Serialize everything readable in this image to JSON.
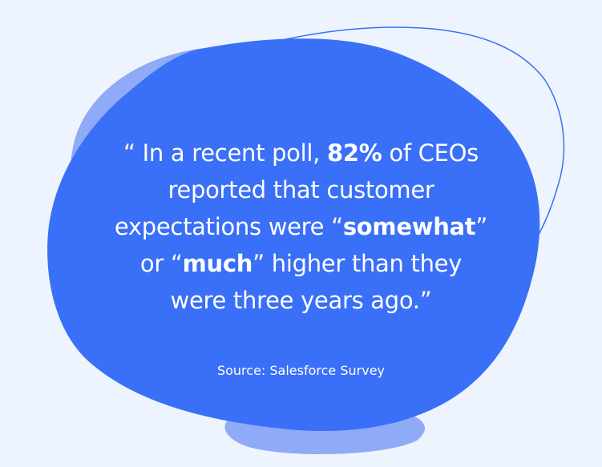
{
  "quote": {
    "line1": {
      "pre": "“ In a recent poll, ",
      "bold": "82%",
      "post": " of CEOs"
    },
    "line2": "reported that customer",
    "line3": {
      "pre": "expectations were “",
      "bold": "somewhat",
      "post": "”"
    },
    "line4": {
      "pre": "or “",
      "bold": "much",
      "post": "” higher than they"
    },
    "line5": "were three years ago.”"
  },
  "source": "Source: Salesforce Survey",
  "colors": {
    "background": "#eef4fd",
    "blob_main": "#3a6ff7",
    "blob_light": "#8faaf6",
    "outline": "#3a6ff7",
    "text": "#ffffff"
  }
}
